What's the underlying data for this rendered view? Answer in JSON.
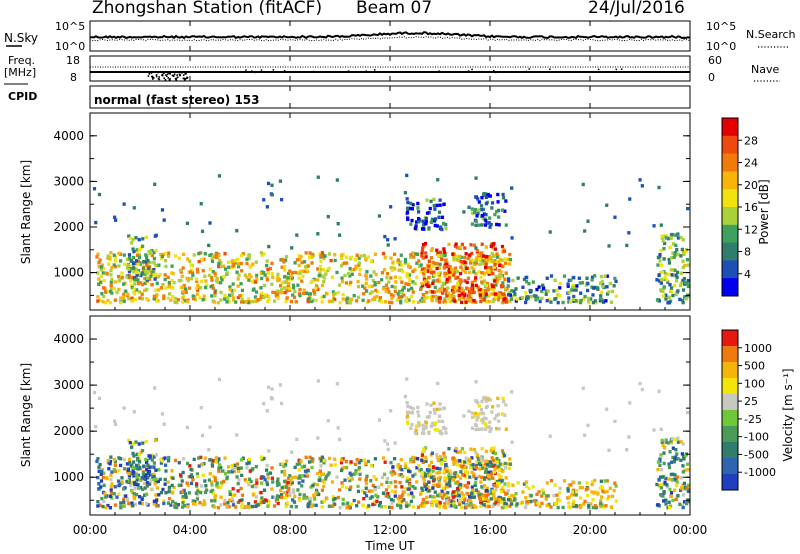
{
  "header": {
    "station": "Zhongshan Station (fitACF)",
    "beam": "Beam 07",
    "date": "24/Jul/2016"
  },
  "panels": {
    "nsky": {
      "label": "N.Sky",
      "tick_top": "10^5",
      "tick_bottom": "10^0",
      "right_tick_top": "10^5",
      "right_tick_bottom": "10^0",
      "right_label": "N.Search"
    },
    "freq": {
      "label_line1": "Freq.",
      "label_line2": "[MHz]",
      "tick_top": "18",
      "tick_bottom": "8",
      "right_tick_top": "60",
      "right_tick_bottom": "0",
      "right_label": "Nave"
    },
    "cpid": {
      "label": "CPID",
      "text": "normal (fast stereo) 153"
    }
  },
  "power_panel": {
    "ylabel": "Slant Range [km]",
    "yticks": [
      "4000",
      "3000",
      "2000",
      "1000"
    ],
    "colorbar_label": "Power [dB]",
    "colorbar_ticks": [
      "28",
      "24",
      "20",
      "16",
      "12",
      "8",
      "4"
    ],
    "colors": [
      "#0000ee",
      "#1e4fb8",
      "#2f7d6a",
      "#3ea05c",
      "#a9d23a",
      "#f2e30e",
      "#f7b40a",
      "#f07a0a",
      "#ee4a10",
      "#e40000"
    ]
  },
  "velocity_panel": {
    "ylabel": "Slant Range [km]",
    "yticks": [
      "4000",
      "3000",
      "2000",
      "1000"
    ],
    "colorbar_label": "Velocity [m s⁻¹]",
    "colorbar_ticks": [
      "1000",
      "500",
      "100",
      "25",
      "-25",
      "-100",
      "-500",
      "-1000"
    ],
    "colors": [
      "#1f3fbf",
      "#2f64b0",
      "#2f7d6a",
      "#4a9a58",
      "#6fc83a",
      "#c8c8c0",
      "#f3e40a",
      "#f5b40a",
      "#ee7a10",
      "#e41a10"
    ]
  },
  "xaxis": {
    "label": "Time UT",
    "ticks": [
      "00:00",
      "04:00",
      "08:00",
      "12:00",
      "16:00",
      "20:00",
      "00:00"
    ]
  },
  "chart_data": {
    "type": "heatmap",
    "title": "Zhongshan Station (fitACF) Beam 07 24/Jul/2016",
    "xlabel": "Time UT",
    "ylabel": "Slant Range [km]",
    "xlim_hours": [
      0,
      24
    ],
    "ylim_km": [
      180,
      4500
    ],
    "panels": [
      "N.Sky / N.Search",
      "Freq. [MHz] / Nave",
      "CPID",
      "Power [dB]",
      "Velocity [m s⁻¹]"
    ],
    "frequency_mhz_approx": 10.5,
    "nsky_range": [
      1,
      100000
    ],
    "power_colorbar_db": [
      0,
      32
    ],
    "velocity_colorbar_ms": [
      -1000,
      1000
    ],
    "scatter_regions": [
      {
        "start_h": 0.2,
        "end_h": 16.8,
        "range_km": [
          300,
          1400
        ],
        "power_db": 18
      },
      {
        "start_h": 1.4,
        "end_h": 2.6,
        "range_km": [
          800,
          1800
        ],
        "power_db": 12
      },
      {
        "start_h": 13.2,
        "end_h": 16.6,
        "range_km": [
          300,
          1600
        ],
        "power_db": 26
      },
      {
        "start_h": 12.6,
        "end_h": 14.2,
        "range_km": [
          1900,
          2600
        ],
        "power_db": 6
      },
      {
        "start_h": 15.2,
        "end_h": 16.6,
        "range_km": [
          2000,
          2700
        ],
        "power_db": 6
      },
      {
        "start_h": 16.6,
        "end_h": 21.0,
        "range_km": [
          300,
          900
        ],
        "power_db": 10
      },
      {
        "start_h": 22.6,
        "end_h": 23.9,
        "range_km": [
          300,
          1800
        ],
        "power_db": 12
      }
    ]
  }
}
